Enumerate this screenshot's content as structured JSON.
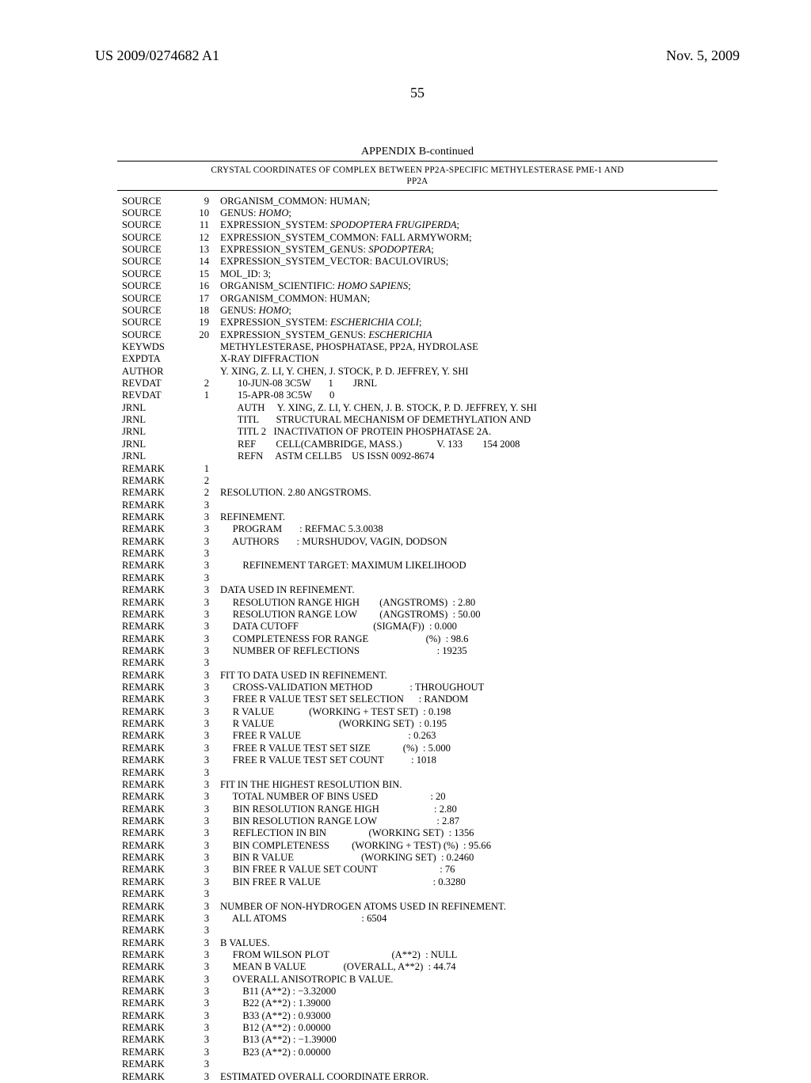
{
  "header": {
    "left": "US 2009/0274682 A1",
    "right": "Nov. 5, 2009"
  },
  "pagenum": "55",
  "appendix_title": "APPENDIX B-continued",
  "subtitle_line1": "CRYSTAL COORDINATES OF COMPLEX BETWEEN PP2A-SPECIFIC METHYLESTERASE PME-1 AND",
  "subtitle_line2": "PP2A",
  "records": [
    {
      "a": "SOURCE",
      "b": "9",
      "c": "ORGANISM_COMMON: HUMAN;"
    },
    {
      "a": "SOURCE",
      "b": "10",
      "c": "GENUS: <i>HOMO</i>;"
    },
    {
      "a": "SOURCE",
      "b": "11",
      "c": "EXPRESSION_SYSTEM: <i>SPODOPTERA FRUGIPERDA</i>;"
    },
    {
      "a": "SOURCE",
      "b": "12",
      "c": "EXPRESSION_SYSTEM_COMMON: FALL ARMYWORM;"
    },
    {
      "a": "SOURCE",
      "b": "13",
      "c": "EXPRESSION_SYSTEM_GENUS: <i>SPODOPTERA</i>;"
    },
    {
      "a": "SOURCE",
      "b": "14",
      "c": "EXPRESSION_SYSTEM_VECTOR: BACULOVIRUS;"
    },
    {
      "a": "SOURCE",
      "b": "15",
      "c": "MOL_ID: 3;"
    },
    {
      "a": "SOURCE",
      "b": "16",
      "c": "ORGANISM_SCIENTIFIC: <i>HOMO SAPIENS</i>;"
    },
    {
      "a": "SOURCE",
      "b": "17",
      "c": "ORGANISM_COMMON: HUMAN;"
    },
    {
      "a": "SOURCE",
      "b": "18",
      "c": "GENUS: <i>HOMO</i>;"
    },
    {
      "a": "SOURCE",
      "b": "19",
      "c": "EXPRESSION_SYSTEM: <i>ESCHERICHIA COLI</i>;"
    },
    {
      "a": "SOURCE",
      "b": "20",
      "c": "EXPRESSION_SYSTEM_GENUS: <i>ESCHERICHIA</i>"
    },
    {
      "a": "KEYWDS",
      "b": "",
      "c": "METHYLESTERASE, PHOSPHATASE, PP2A, HYDROLASE"
    },
    {
      "a": "EXPDTA",
      "b": "",
      "c": "X-RAY DIFFRACTION"
    },
    {
      "a": "AUTHOR",
      "b": "",
      "c": "Y. XING, Z. LI, Y. CHEN, J. STOCK, P. D. JEFFREY, Y. SHI"
    },
    {
      "a": "REVDAT",
      "b": "2",
      "c": "       10-JUN-08 3C5W       1        JRNL"
    },
    {
      "a": "REVDAT",
      "b": "1",
      "c": "       15-APR-08 3C5W       0"
    },
    {
      "a": "JRNL",
      "b": "",
      "c": "       AUTH     Y. XING, Z. LI, Y. CHEN, J. B. STOCK, P. D. JEFFREY, Y. SHI"
    },
    {
      "a": "JRNL",
      "b": "",
      "c": "       TITL       STRUCTURAL MECHANISM OF DEMETHYLATION AND"
    },
    {
      "a": "JRNL",
      "b": "",
      "c": "       TITL 2   INACTIVATION OF PROTEIN PHOSPHATASE 2A."
    },
    {
      "a": "JRNL",
      "b": "",
      "c": "       REF        CELL(CAMBRIDGE, MASS.)              V. 133        154 2008"
    },
    {
      "a": "JRNL",
      "b": "",
      "c": "       REFN     ASTM CELLB5    US ISSN 0092-8674"
    },
    {
      "a": "REMARK",
      "b": "1",
      "c": ""
    },
    {
      "a": "REMARK",
      "b": "2",
      "c": ""
    },
    {
      "a": "REMARK",
      "b": "2",
      "c": "RESOLUTION. 2.80 ANGSTROMS."
    },
    {
      "a": "REMARK",
      "b": "3",
      "c": ""
    },
    {
      "a": "REMARK",
      "b": "3",
      "c": "REFINEMENT."
    },
    {
      "a": "REMARK",
      "b": "3",
      "c": "     PROGRAM       : REFMAC 5.3.0038"
    },
    {
      "a": "REMARK",
      "b": "3",
      "c": "     AUTHORS       : MURSHUDOV, VAGIN, DODSON"
    },
    {
      "a": "REMARK",
      "b": "3",
      "c": ""
    },
    {
      "a": "REMARK",
      "b": "3",
      "c": "         REFINEMENT TARGET: MAXIMUM LIKELIHOOD"
    },
    {
      "a": "REMARK",
      "b": "3",
      "c": ""
    },
    {
      "a": "REMARK",
      "b": "3",
      "c": "DATA USED IN REFINEMENT."
    },
    {
      "a": "REMARK",
      "b": "3",
      "c": "     RESOLUTION RANGE HIGH        (ANGSTROMS)  : 2.80"
    },
    {
      "a": "REMARK",
      "b": "3",
      "c": "     RESOLUTION RANGE LOW         (ANGSTROMS)  : 50.00"
    },
    {
      "a": "REMARK",
      "b": "3",
      "c": "     DATA CUTOFF                              (SIGMA(F))  : 0.000"
    },
    {
      "a": "REMARK",
      "b": "3",
      "c": "     COMPLETENESS FOR RANGE                       (%)  : 98.6"
    },
    {
      "a": "REMARK",
      "b": "3",
      "c": "     NUMBER OF REFLECTIONS                               : 19235"
    },
    {
      "a": "REMARK",
      "b": "3",
      "c": ""
    },
    {
      "a": "REMARK",
      "b": "3",
      "c": "FIT TO DATA USED IN REFINEMENT."
    },
    {
      "a": "REMARK",
      "b": "3",
      "c": "     CROSS-VALIDATION METHOD               : THROUGHOUT"
    },
    {
      "a": "REMARK",
      "b": "3",
      "c": "     FREE R VALUE TEST SET SELECTION      : RANDOM"
    },
    {
      "a": "REMARK",
      "b": "3",
      "c": "     R VALUE              (WORKING + TEST SET)  : 0.198"
    },
    {
      "a": "REMARK",
      "b": "3",
      "c": "     R VALUE                          (WORKING SET)  : 0.195"
    },
    {
      "a": "REMARK",
      "b": "3",
      "c": "     FREE R VALUE                                           : 0.263"
    },
    {
      "a": "REMARK",
      "b": "3",
      "c": "     FREE R VALUE TEST SET SIZE             (%)  : 5.000"
    },
    {
      "a": "REMARK",
      "b": "3",
      "c": "     FREE R VALUE TEST SET COUNT           : 1018"
    },
    {
      "a": "REMARK",
      "b": "3",
      "c": ""
    },
    {
      "a": "REMARK",
      "b": "3",
      "c": "FIT IN THE HIGHEST RESOLUTION BIN."
    },
    {
      "a": "REMARK",
      "b": "3",
      "c": "     TOTAL NUMBER OF BINS USED                     : 20"
    },
    {
      "a": "REMARK",
      "b": "3",
      "c": "     BIN RESOLUTION RANGE HIGH                      : 2.80"
    },
    {
      "a": "REMARK",
      "b": "3",
      "c": "     BIN RESOLUTION RANGE LOW                        : 2.87"
    },
    {
      "a": "REMARK",
      "b": "3",
      "c": "     REFLECTION IN BIN                 (WORKING SET)  : 1356"
    },
    {
      "a": "REMARK",
      "b": "3",
      "c": "     BIN COMPLETENESS         (WORKING + TEST) (%)  : 95.66"
    },
    {
      "a": "REMARK",
      "b": "3",
      "c": "     BIN R VALUE                           (WORKING SET)  : 0.2460"
    },
    {
      "a": "REMARK",
      "b": "3",
      "c": "     BIN FREE R VALUE SET COUNT                         : 76"
    },
    {
      "a": "REMARK",
      "b": "3",
      "c": "     BIN FREE R VALUE                                             : 0.3280"
    },
    {
      "a": "REMARK",
      "b": "3",
      "c": ""
    },
    {
      "a": "REMARK",
      "b": "3",
      "c": "NUMBER OF NON-HYDROGEN ATOMS USED IN REFINEMENT."
    },
    {
      "a": "REMARK",
      "b": "3",
      "c": "     ALL ATOMS                              : 6504"
    },
    {
      "a": "REMARK",
      "b": "3",
      "c": ""
    },
    {
      "a": "REMARK",
      "b": "3",
      "c": "B VALUES."
    },
    {
      "a": "REMARK",
      "b": "3",
      "c": "     FROM WILSON PLOT                         (A**2)  : NULL"
    },
    {
      "a": "REMARK",
      "b": "3",
      "c": "     MEAN B VALUE               (OVERALL, A**2)  : 44.74"
    },
    {
      "a": "REMARK",
      "b": "3",
      "c": "     OVERALL ANISOTROPIC B VALUE."
    },
    {
      "a": "REMARK",
      "b": "3",
      "c": "         B11 (A**2) : −3.32000"
    },
    {
      "a": "REMARK",
      "b": "3",
      "c": "         B22 (A**2) : 1.39000"
    },
    {
      "a": "REMARK",
      "b": "3",
      "c": "         B33 (A**2) : 0.93000"
    },
    {
      "a": "REMARK",
      "b": "3",
      "c": "         B12 (A**2) : 0.00000"
    },
    {
      "a": "REMARK",
      "b": "3",
      "c": "         B13 (A**2) : −1.39000"
    },
    {
      "a": "REMARK",
      "b": "3",
      "c": "         B23 (A**2) : 0.00000"
    },
    {
      "a": "REMARK",
      "b": "3",
      "c": ""
    },
    {
      "a": "REMARK",
      "b": "3",
      "c": "ESTIMATED OVERALL COORDINATE ERROR."
    }
  ]
}
